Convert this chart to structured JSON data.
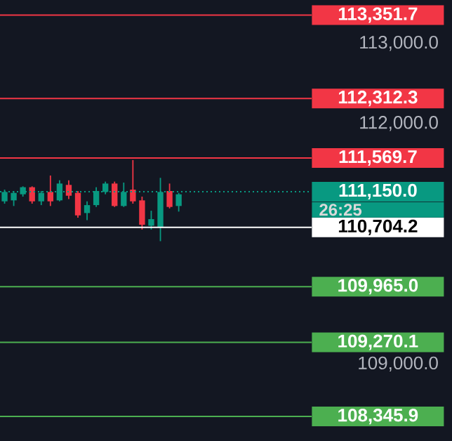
{
  "chart_data": {
    "type": "candlestick",
    "categories": [
      null,
      null,
      null,
      null,
      null,
      null,
      null,
      null,
      null,
      null,
      null,
      null,
      null,
      null,
      null,
      null,
      null,
      null,
      null,
      null,
      null,
      null,
      null,
      null,
      null,
      null,
      null,
      null,
      null,
      null,
      null,
      null,
      null,
      null
    ],
    "ohlc": [
      [
        111029,
        111175,
        111000,
        111146
      ],
      [
        111041,
        111158,
        110971,
        111134
      ],
      [
        111117,
        111216,
        111088,
        111205
      ],
      [
        111205,
        111216,
        111000,
        111029
      ],
      [
        111029,
        111158,
        110982,
        111134
      ],
      [
        111146,
        111351,
        110971,
        111029
      ],
      [
        111041,
        111292,
        111029,
        111251
      ],
      [
        111234,
        111292,
        111058,
        111099
      ],
      [
        111134,
        111158,
        110825,
        110854
      ],
      [
        110883,
        111029,
        110795,
        110982
      ],
      [
        110982,
        111205,
        110959,
        111158
      ],
      [
        111146,
        111275,
        111117,
        111251
      ],
      [
        111251,
        111275,
        110959,
        110971
      ],
      [
        110971,
        111263,
        110959,
        111146
      ],
      [
        111175,
        111544,
        111000,
        111029
      ],
      [
        111041,
        111088,
        110678,
        110737
      ],
      [
        110725,
        110912,
        110678,
        110807
      ],
      [
        110708,
        111322,
        110532,
        111146
      ],
      [
        111158,
        111251,
        110941,
        110959
      ],
      [
        110971,
        111134,
        110901,
        111117
      ],
      null,
      null,
      null,
      null,
      null,
      null,
      null,
      null,
      null,
      null,
      null,
      null,
      null,
      null
    ],
    "colors": [
      "#089981",
      "#089981",
      "#089981",
      "#f23645",
      "#089981",
      "#f23645",
      "#089981",
      "#f23645",
      "#f23645",
      "#089981",
      "#089981",
      "#089981",
      "#f23645",
      "#089981",
      "#f23645",
      "#f23645",
      "#089981",
      "#089981",
      "#f23645",
      "#089981",
      null,
      null,
      null,
      null,
      null,
      null,
      null,
      null,
      null,
      null,
      null,
      null,
      null,
      null
    ],
    "ylim": [
      108040,
      113540
    ],
    "yticks": [
      {
        "value": 109000,
        "label": "109,000.0"
      },
      {
        "value": 112000,
        "label": "112,000.0"
      },
      {
        "value": 113000,
        "label": "113,000.0"
      }
    ],
    "tick_labels": "y",
    "ref_lines": [
      {
        "axis": "y",
        "value": 113351.7,
        "label": "113,351.7",
        "color": "#f23645",
        "line_style": "solid"
      },
      {
        "axis": "y",
        "value": 112312.3,
        "label": "112,312.3",
        "color": "#f23645",
        "line_style": "solid"
      },
      {
        "axis": "y",
        "value": 111569.7,
        "label": "111,569.7",
        "color": "#f23645",
        "line_style": "solid"
      },
      {
        "axis": "y",
        "value": 111150.0,
        "label": "111,150.0",
        "color": "#089981",
        "line_style": "dotted"
      },
      {
        "axis": "y",
        "value": 110704.2,
        "label": "110,704.2",
        "color": "#ffffff",
        "line_style": "solid"
      },
      {
        "axis": "y",
        "value": 109965.0,
        "label": "109,965.0",
        "color": "#4caf50",
        "line_style": "solid"
      },
      {
        "axis": "y",
        "value": 109270.1,
        "label": "109,270.1",
        "color": "#4caf50",
        "line_style": "solid"
      },
      {
        "axis": "y",
        "value": 108345.9,
        "label": "108,345.9",
        "color": "#4caf50",
        "line_style": "solid"
      }
    ],
    "annotations": [
      "26:25"
    ]
  }
}
